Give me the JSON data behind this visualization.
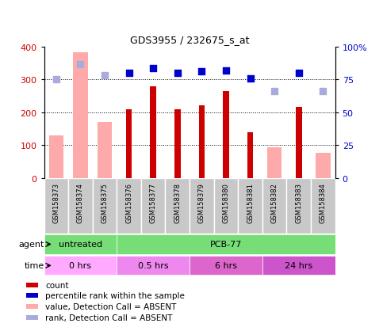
{
  "title": "GDS3955 / 232675_s_at",
  "samples": [
    "GSM158373",
    "GSM158374",
    "GSM158375",
    "GSM158376",
    "GSM158377",
    "GSM158378",
    "GSM158379",
    "GSM158380",
    "GSM158381",
    "GSM158382",
    "GSM158383",
    "GSM158384"
  ],
  "count": [
    null,
    null,
    null,
    210,
    280,
    210,
    222,
    265,
    140,
    null,
    217,
    null
  ],
  "count_absent": [
    130,
    383,
    170,
    null,
    null,
    null,
    null,
    null,
    null,
    93,
    null,
    77
  ],
  "rank_present": [
    null,
    null,
    null,
    80,
    84,
    80,
    81,
    82,
    76,
    null,
    80,
    null
  ],
  "rank_absent": [
    75,
    87,
    78,
    null,
    null,
    null,
    null,
    null,
    null,
    66,
    null,
    66
  ],
  "ylim_left": [
    0,
    400
  ],
  "ylim_right": [
    0,
    100
  ],
  "yticks_left": [
    0,
    100,
    200,
    300,
    400
  ],
  "yticks_right": [
    0,
    25,
    50,
    75,
    100
  ],
  "ytick_right_labels": [
    "0",
    "25",
    "50",
    "75",
    "100%"
  ],
  "color_count": "#cc0000",
  "color_rank": "#0000cc",
  "color_count_absent": "#ffaaaa",
  "color_rank_absent": "#aaaadd",
  "color_sample_bg": "#c8c8c8",
  "color_agent_green": "#77dd77",
  "color_time_light": "#ffaaff",
  "color_time_mid1": "#ee88ee",
  "color_time_mid2": "#dd66cc",
  "color_time_dark": "#cc55cc",
  "dotted_lines": [
    100,
    200,
    300
  ],
  "absent_bar_width": 0.6,
  "present_bar_width": 0.25,
  "rank_marker_size": 35,
  "agent_label": "agent",
  "time_label": "time",
  "legend": [
    {
      "color": "#cc0000",
      "label": "count"
    },
    {
      "color": "#0000cc",
      "label": "percentile rank within the sample"
    },
    {
      "color": "#ffaaaa",
      "label": "value, Detection Call = ABSENT"
    },
    {
      "color": "#aaaadd",
      "label": "rank, Detection Call = ABSENT"
    }
  ]
}
